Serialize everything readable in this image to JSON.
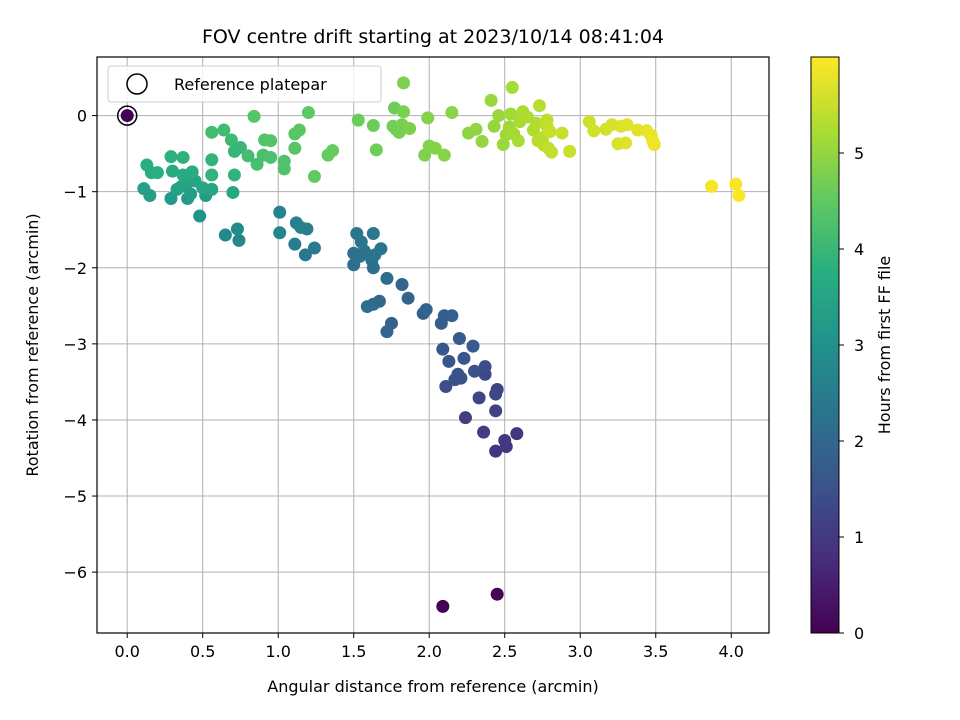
{
  "chart_data": {
    "type": "scatter",
    "title": "FOV centre drift starting at 2023/10/14 08:41:04",
    "xlabel": "Angular distance from reference (arcmin)",
    "ylabel": "Rotation from reference (arcmin)",
    "xlim": [
      -0.2,
      4.25
    ],
    "ylim": [
      -6.8,
      0.77
    ],
    "xticks": [
      0.0,
      0.5,
      1.0,
      1.5,
      2.0,
      2.5,
      3.0,
      3.5,
      4.0
    ],
    "xtick_labels": [
      "0.0",
      "0.5",
      "1.0",
      "1.5",
      "2.0",
      "2.5",
      "3.0",
      "3.5",
      "4.0"
    ],
    "yticks": [
      0,
      -1,
      -2,
      -3,
      -4,
      -5,
      -6
    ],
    "ytick_labels": [
      "0",
      "−1",
      "−2",
      "−3",
      "−4",
      "−5",
      "−6"
    ],
    "grid": true,
    "colormap": "viridis",
    "colorbar": {
      "label": "Hours from first FF file",
      "range": [
        0,
        6.0
      ],
      "ticks": [
        0,
        1,
        2,
        3,
        4,
        5
      ],
      "tick_labels": [
        "0",
        "1",
        "2",
        "3",
        "4",
        "5"
      ]
    },
    "legend": {
      "position": "upper-left",
      "entries": [
        "Reference platepar"
      ]
    },
    "reference_point": {
      "x": 0.0,
      "y": 0.0
    },
    "points": [
      {
        "x": 2.09,
        "y": -6.45,
        "t": 0.02
      },
      {
        "x": 2.45,
        "y": -6.29,
        "t": 0.06
      },
      {
        "x": 0.0,
        "y": 0.0,
        "t": 0.0
      },
      {
        "x": 2.44,
        "y": -4.41,
        "t": 0.9
      },
      {
        "x": 2.51,
        "y": -4.35,
        "t": 0.95
      },
      {
        "x": 2.58,
        "y": -4.18,
        "t": 0.98
      },
      {
        "x": 2.5,
        "y": -4.27,
        "t": 1.0
      },
      {
        "x": 2.36,
        "y": -4.16,
        "t": 1.05
      },
      {
        "x": 2.24,
        "y": -3.97,
        "t": 1.1
      },
      {
        "x": 2.44,
        "y": -3.88,
        "t": 1.15
      },
      {
        "x": 2.45,
        "y": -3.6,
        "t": 1.2
      },
      {
        "x": 2.33,
        "y": -3.71,
        "t": 1.22
      },
      {
        "x": 2.44,
        "y": -3.66,
        "t": 1.25
      },
      {
        "x": 2.37,
        "y": -3.4,
        "t": 1.3
      },
      {
        "x": 2.37,
        "y": -3.3,
        "t": 1.35
      },
      {
        "x": 2.11,
        "y": -3.56,
        "t": 1.4
      },
      {
        "x": 2.17,
        "y": -3.47,
        "t": 1.45
      },
      {
        "x": 2.19,
        "y": -3.4,
        "t": 1.5
      },
      {
        "x": 2.21,
        "y": -3.45,
        "t": 1.52
      },
      {
        "x": 2.3,
        "y": -3.36,
        "t": 1.55
      },
      {
        "x": 2.13,
        "y": -3.23,
        "t": 1.6
      },
      {
        "x": 2.23,
        "y": -3.19,
        "t": 1.62
      },
      {
        "x": 2.09,
        "y": -3.07,
        "t": 1.65
      },
      {
        "x": 2.29,
        "y": -3.03,
        "t": 1.7
      },
      {
        "x": 2.2,
        "y": -2.93,
        "t": 1.72
      },
      {
        "x": 2.08,
        "y": -2.73,
        "t": 1.75
      },
      {
        "x": 2.1,
        "y": -2.63,
        "t": 1.78
      },
      {
        "x": 2.15,
        "y": -2.63,
        "t": 1.8
      },
      {
        "x": 1.96,
        "y": -2.6,
        "t": 1.85
      },
      {
        "x": 1.98,
        "y": -2.55,
        "t": 1.88
      },
      {
        "x": 1.75,
        "y": -2.73,
        "t": 1.9
      },
      {
        "x": 1.72,
        "y": -2.84,
        "t": 1.92
      },
      {
        "x": 1.86,
        "y": -2.4,
        "t": 1.95
      },
      {
        "x": 1.82,
        "y": -2.22,
        "t": 2.0
      },
      {
        "x": 1.67,
        "y": -2.44,
        "t": 2.05
      },
      {
        "x": 1.63,
        "y": -2.48,
        "t": 2.08
      },
      {
        "x": 1.59,
        "y": -2.51,
        "t": 2.1
      },
      {
        "x": 1.72,
        "y": -2.14,
        "t": 2.12
      },
      {
        "x": 1.63,
        "y": -2.0,
        "t": 2.15
      },
      {
        "x": 1.62,
        "y": -1.9,
        "t": 2.18
      },
      {
        "x": 1.5,
        "y": -1.96,
        "t": 2.2
      },
      {
        "x": 1.5,
        "y": -1.81,
        "t": 2.22
      },
      {
        "x": 1.54,
        "y": -1.85,
        "t": 2.24
      },
      {
        "x": 1.57,
        "y": -1.78,
        "t": 2.26
      },
      {
        "x": 1.64,
        "y": -1.83,
        "t": 2.28
      },
      {
        "x": 1.68,
        "y": -1.75,
        "t": 2.3
      },
      {
        "x": 1.55,
        "y": -1.66,
        "t": 2.32
      },
      {
        "x": 1.52,
        "y": -1.55,
        "t": 2.35
      },
      {
        "x": 1.63,
        "y": -1.55,
        "t": 2.37
      },
      {
        "x": 1.18,
        "y": -1.83,
        "t": 2.4
      },
      {
        "x": 1.24,
        "y": -1.74,
        "t": 2.45
      },
      {
        "x": 1.11,
        "y": -1.69,
        "t": 2.5
      },
      {
        "x": 1.19,
        "y": -1.49,
        "t": 2.55
      },
      {
        "x": 1.12,
        "y": -1.41,
        "t": 2.6
      },
      {
        "x": 1.15,
        "y": -1.47,
        "t": 2.62
      },
      {
        "x": 1.01,
        "y": -1.27,
        "t": 2.65
      },
      {
        "x": 1.01,
        "y": -1.54,
        "t": 2.7
      },
      {
        "x": 0.74,
        "y": -1.64,
        "t": 2.75
      },
      {
        "x": 0.65,
        "y": -1.57,
        "t": 2.8
      },
      {
        "x": 0.73,
        "y": -1.49,
        "t": 2.85
      },
      {
        "x": 0.48,
        "y": -1.32,
        "t": 3.1
      },
      {
        "x": 0.29,
        "y": -1.09,
        "t": 3.2
      },
      {
        "x": 0.4,
        "y": -1.09,
        "t": 3.25
      },
      {
        "x": 0.42,
        "y": -1.03,
        "t": 3.28
      },
      {
        "x": 0.52,
        "y": -1.05,
        "t": 3.3
      },
      {
        "x": 0.15,
        "y": -1.05,
        "t": 3.35
      },
      {
        "x": 0.11,
        "y": -0.96,
        "t": 3.4
      },
      {
        "x": 0.33,
        "y": -0.97,
        "t": 3.45
      },
      {
        "x": 0.36,
        "y": -0.93,
        "t": 3.48
      },
      {
        "x": 0.4,
        "y": -0.88,
        "t": 3.5
      },
      {
        "x": 0.45,
        "y": -0.86,
        "t": 3.52
      },
      {
        "x": 0.5,
        "y": -0.95,
        "t": 3.55
      },
      {
        "x": 0.56,
        "y": -0.97,
        "t": 3.58
      },
      {
        "x": 0.7,
        "y": -1.01,
        "t": 3.6
      },
      {
        "x": 0.37,
        "y": -0.78,
        "t": 3.65
      },
      {
        "x": 0.3,
        "y": -0.73,
        "t": 3.68
      },
      {
        "x": 0.43,
        "y": -0.74,
        "t": 3.7
      },
      {
        "x": 0.16,
        "y": -0.75,
        "t": 3.72
      },
      {
        "x": 0.2,
        "y": -0.75,
        "t": 3.74
      },
      {
        "x": 0.13,
        "y": -0.65,
        "t": 3.76
      },
      {
        "x": 0.29,
        "y": -0.54,
        "t": 3.8
      },
      {
        "x": 0.37,
        "y": -0.55,
        "t": 3.82
      },
      {
        "x": 0.56,
        "y": -0.78,
        "t": 3.85
      },
      {
        "x": 0.71,
        "y": -0.78,
        "t": 3.88
      },
      {
        "x": 0.56,
        "y": -0.58,
        "t": 3.9
      },
      {
        "x": 0.71,
        "y": -0.47,
        "t": 3.95
      },
      {
        "x": 0.75,
        "y": -0.42,
        "t": 4.0
      },
      {
        "x": 0.69,
        "y": -0.32,
        "t": 4.05
      },
      {
        "x": 0.64,
        "y": -0.19,
        "t": 4.1
      },
      {
        "x": 0.56,
        "y": -0.22,
        "t": 4.12
      },
      {
        "x": 0.8,
        "y": -0.53,
        "t": 4.15
      },
      {
        "x": 0.86,
        "y": -0.64,
        "t": 4.2
      },
      {
        "x": 0.9,
        "y": -0.52,
        "t": 4.22
      },
      {
        "x": 0.95,
        "y": -0.55,
        "t": 4.25
      },
      {
        "x": 1.04,
        "y": -0.6,
        "t": 4.28
      },
      {
        "x": 1.04,
        "y": -0.7,
        "t": 4.3
      },
      {
        "x": 0.91,
        "y": -0.32,
        "t": 4.32
      },
      {
        "x": 0.95,
        "y": -0.33,
        "t": 4.35
      },
      {
        "x": 0.84,
        "y": -0.01,
        "t": 4.38
      },
      {
        "x": 1.11,
        "y": -0.43,
        "t": 4.4
      },
      {
        "x": 1.11,
        "y": -0.24,
        "t": 4.42
      },
      {
        "x": 1.14,
        "y": -0.19,
        "t": 4.45
      },
      {
        "x": 1.2,
        "y": 0.04,
        "t": 4.5
      },
      {
        "x": 1.24,
        "y": -0.8,
        "t": 4.52
      },
      {
        "x": 1.33,
        "y": -0.52,
        "t": 4.55
      },
      {
        "x": 1.36,
        "y": -0.46,
        "t": 4.58
      },
      {
        "x": 1.53,
        "y": -0.06,
        "t": 4.6
      },
      {
        "x": 1.63,
        "y": -0.13,
        "t": 4.62
      },
      {
        "x": 1.65,
        "y": -0.45,
        "t": 4.64
      },
      {
        "x": 1.77,
        "y": 0.1,
        "t": 4.66
      },
      {
        "x": 1.76,
        "y": -0.14,
        "t": 4.68
      },
      {
        "x": 1.78,
        "y": -0.18,
        "t": 4.7
      },
      {
        "x": 1.8,
        "y": -0.22,
        "t": 4.72
      },
      {
        "x": 1.82,
        "y": -0.12,
        "t": 4.74
      },
      {
        "x": 1.83,
        "y": 0.05,
        "t": 4.76
      },
      {
        "x": 1.87,
        "y": -0.17,
        "t": 4.78
      },
      {
        "x": 1.83,
        "y": 0.43,
        "t": 4.8
      },
      {
        "x": 1.97,
        "y": -0.52,
        "t": 4.82
      },
      {
        "x": 2.0,
        "y": -0.4,
        "t": 4.84
      },
      {
        "x": 1.99,
        "y": -0.03,
        "t": 4.86
      },
      {
        "x": 2.04,
        "y": -0.43,
        "t": 4.88
      },
      {
        "x": 2.1,
        "y": -0.52,
        "t": 4.9
      },
      {
        "x": 2.15,
        "y": 0.04,
        "t": 4.92
      },
      {
        "x": 2.26,
        "y": -0.23,
        "t": 4.96
      },
      {
        "x": 2.31,
        "y": -0.18,
        "t": 4.98
      },
      {
        "x": 2.35,
        "y": -0.34,
        "t": 5.0
      },
      {
        "x": 2.43,
        "y": -0.14,
        "t": 5.02
      },
      {
        "x": 2.41,
        "y": 0.2,
        "t": 5.04
      },
      {
        "x": 2.46,
        "y": 0.0,
        "t": 5.06
      },
      {
        "x": 2.49,
        "y": -0.38,
        "t": 5.08
      },
      {
        "x": 2.51,
        "y": -0.25,
        "t": 5.1
      },
      {
        "x": 2.53,
        "y": -0.15,
        "t": 5.12
      },
      {
        "x": 2.54,
        "y": 0.02,
        "t": 5.14
      },
      {
        "x": 2.56,
        "y": -0.24,
        "t": 5.16
      },
      {
        "x": 2.55,
        "y": 0.37,
        "t": 5.18
      },
      {
        "x": 2.59,
        "y": -0.33,
        "t": 5.2
      },
      {
        "x": 2.6,
        "y": -0.08,
        "t": 5.22
      },
      {
        "x": 2.62,
        "y": 0.05,
        "t": 5.24
      },
      {
        "x": 2.65,
        "y": -0.02,
        "t": 5.26
      },
      {
        "x": 2.69,
        "y": -0.19,
        "t": 5.28
      },
      {
        "x": 2.71,
        "y": -0.1,
        "t": 5.3
      },
      {
        "x": 2.72,
        "y": -0.33,
        "t": 5.32
      },
      {
        "x": 2.73,
        "y": 0.13,
        "t": 5.34
      },
      {
        "x": 2.75,
        "y": -0.29,
        "t": 5.36
      },
      {
        "x": 2.76,
        "y": -0.39,
        "t": 5.38
      },
      {
        "x": 2.78,
        "y": -0.14,
        "t": 5.4
      },
      {
        "x": 2.78,
        "y": -0.06,
        "t": 5.42
      },
      {
        "x": 2.79,
        "y": -0.43,
        "t": 5.44
      },
      {
        "x": 2.81,
        "y": -0.48,
        "t": 5.46
      },
      {
        "x": 2.8,
        "y": -0.21,
        "t": 5.48
      },
      {
        "x": 2.88,
        "y": -0.23,
        "t": 5.5
      },
      {
        "x": 2.93,
        "y": -0.47,
        "t": 5.52
      },
      {
        "x": 3.06,
        "y": -0.08,
        "t": 5.55
      },
      {
        "x": 3.09,
        "y": -0.2,
        "t": 5.58
      },
      {
        "x": 3.17,
        "y": -0.18,
        "t": 5.6
      },
      {
        "x": 3.21,
        "y": -0.12,
        "t": 5.62
      },
      {
        "x": 3.25,
        "y": -0.37,
        "t": 5.65
      },
      {
        "x": 3.3,
        "y": -0.36,
        "t": 5.68
      },
      {
        "x": 3.27,
        "y": -0.14,
        "t": 5.7
      },
      {
        "x": 3.31,
        "y": -0.12,
        "t": 5.72
      },
      {
        "x": 3.38,
        "y": -0.19,
        "t": 5.75
      },
      {
        "x": 3.44,
        "y": -0.2,
        "t": 5.78
      },
      {
        "x": 3.47,
        "y": -0.26,
        "t": 5.8
      },
      {
        "x": 3.49,
        "y": -0.38,
        "t": 5.83
      },
      {
        "x": 3.48,
        "y": -0.33,
        "t": 5.85
      },
      {
        "x": 3.87,
        "y": -0.93,
        "t": 5.9
      },
      {
        "x": 4.03,
        "y": -0.9,
        "t": 5.95
      },
      {
        "x": 4.05,
        "y": -1.05,
        "t": 6.0
      }
    ]
  }
}
